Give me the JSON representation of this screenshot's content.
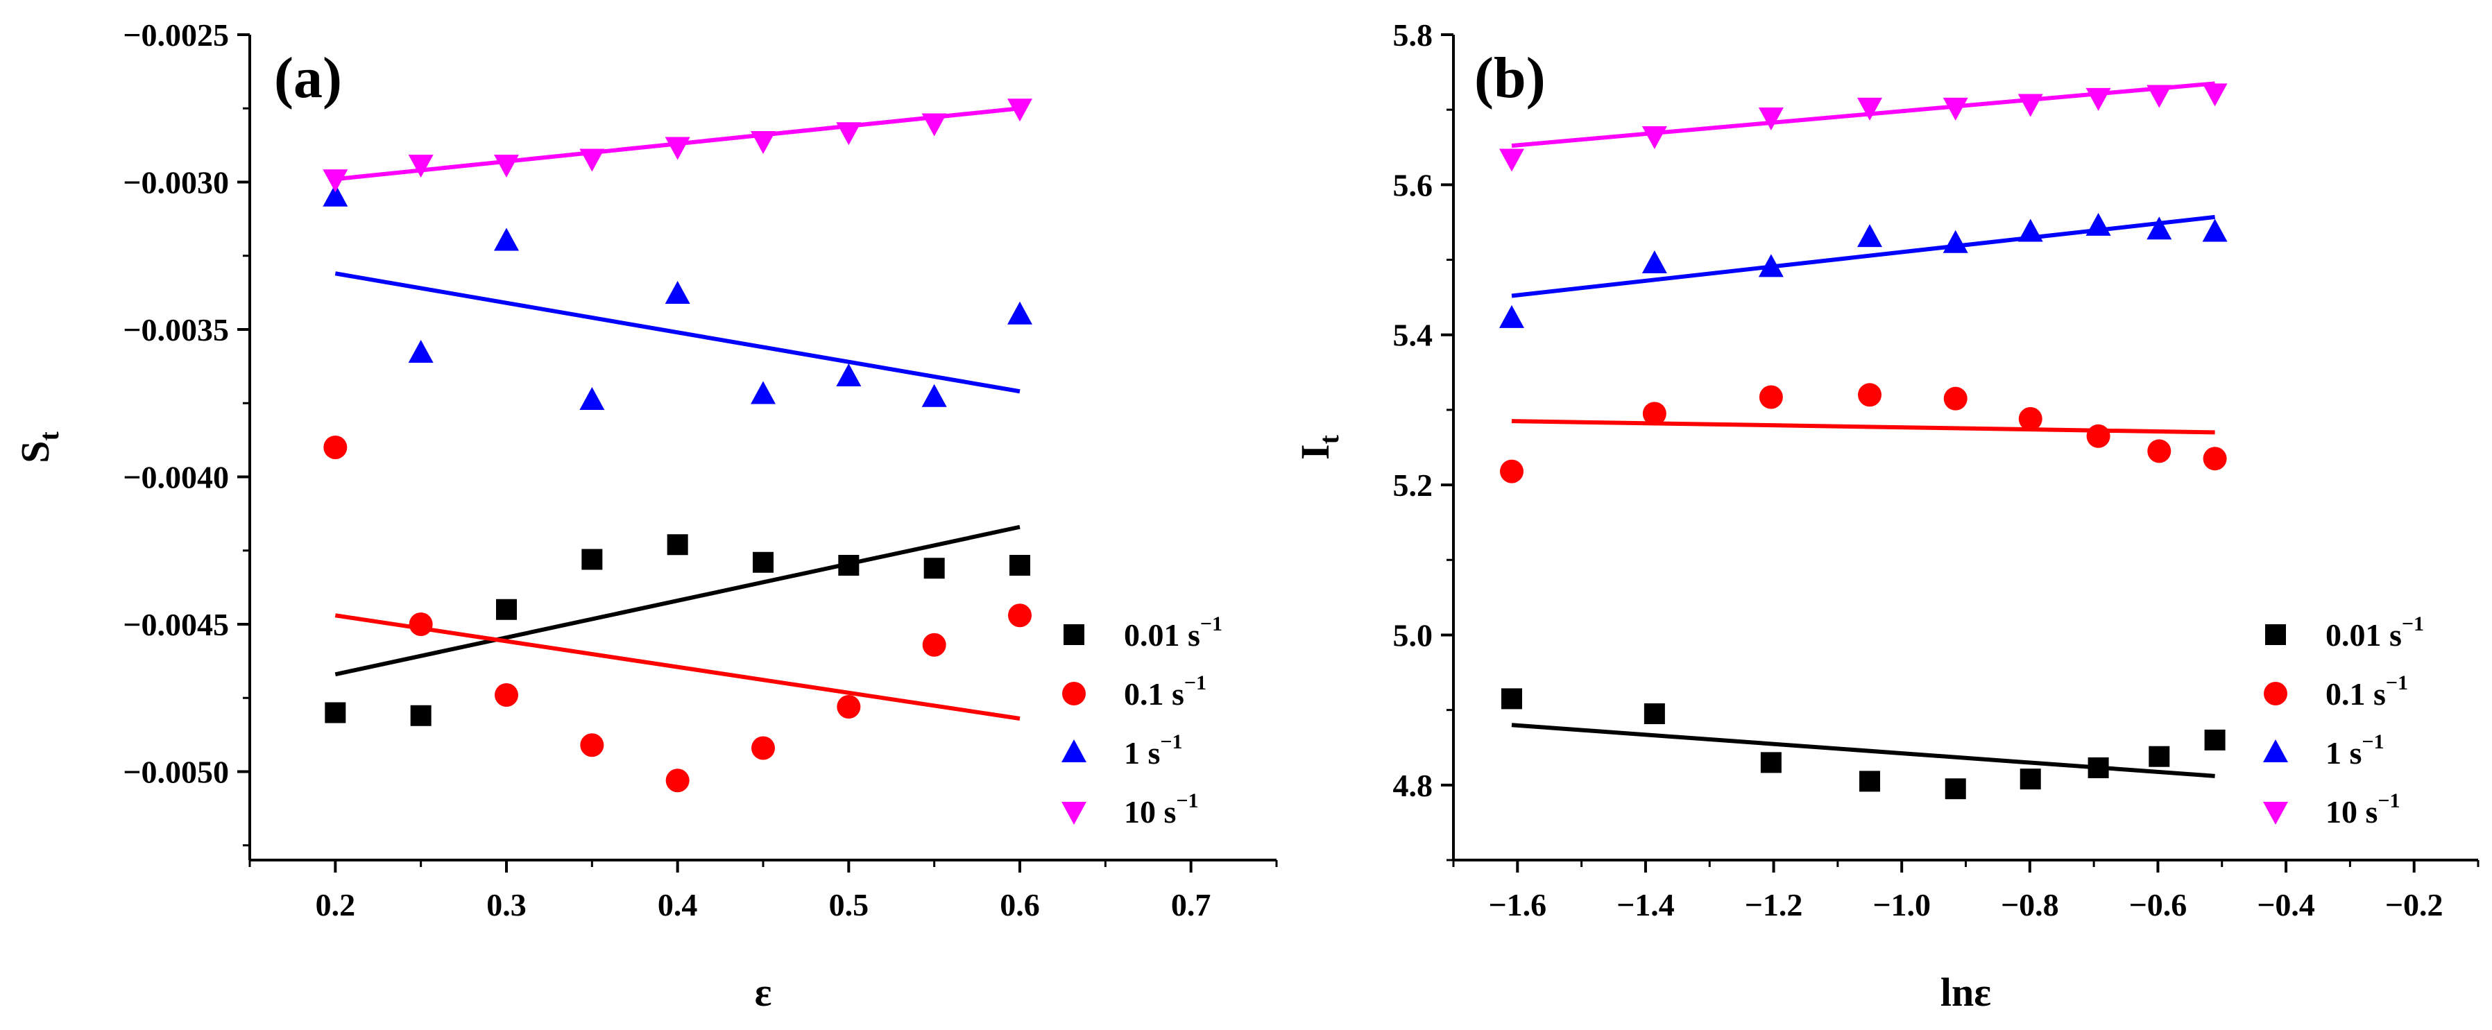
{
  "chart_data": [
    {
      "type": "scatter",
      "panel_label": "(a)",
      "xlabel": "ε",
      "ylabel_main": "S",
      "ylabel_sub": "t",
      "xlim": [
        0.15,
        0.75
      ],
      "ylim": [
        -0.0053,
        -0.0025
      ],
      "xticks": [
        0.2,
        0.3,
        0.4,
        0.5,
        0.6,
        0.7
      ],
      "xtick_labels": [
        "0.2",
        "0.3",
        "0.4",
        "0.5",
        "0.6",
        "0.7"
      ],
      "yticks": [
        -0.005,
        -0.0045,
        -0.004,
        -0.0035,
        -0.003,
        -0.0025
      ],
      "ytick_labels": [
        "−0.0050",
        "−0.0045",
        "−0.0040",
        "−0.0035",
        "−0.0030",
        "−0.0025"
      ],
      "legend_position": "bottom-right",
      "series": [
        {
          "name": "0.01 s",
          "unit_exp": "−1",
          "marker": "square",
          "color": "#000000",
          "x": [
            0.2,
            0.25,
            0.3,
            0.35,
            0.4,
            0.45,
            0.5,
            0.55,
            0.6
          ],
          "y": [
            -0.0048,
            -0.00481,
            -0.00445,
            -0.00428,
            -0.00423,
            -0.00429,
            -0.0043,
            -0.00431,
            -0.0043
          ],
          "fit": [
            [
              0.2,
              -0.00467
            ],
            [
              0.6,
              -0.00417
            ]
          ]
        },
        {
          "name": "0.1 s",
          "unit_exp": "−1",
          "marker": "circle",
          "color": "#ff0000",
          "x": [
            0.2,
            0.25,
            0.3,
            0.35,
            0.4,
            0.45,
            0.5,
            0.55,
            0.6
          ],
          "y": [
            -0.0039,
            -0.0045,
            -0.00474,
            -0.00491,
            -0.00503,
            -0.00492,
            -0.00478,
            -0.00457,
            -0.00447
          ],
          "fit": [
            [
              0.2,
              -0.00447
            ],
            [
              0.6,
              -0.00482
            ]
          ]
        },
        {
          "name": "1 s",
          "unit_exp": "−1",
          "marker": "triangle-up",
          "color": "#0000ff",
          "x": [
            0.2,
            0.25,
            0.3,
            0.35,
            0.4,
            0.45,
            0.5,
            0.55,
            0.6
          ],
          "y": [
            -0.00305,
            -0.00358,
            -0.0032,
            -0.00374,
            -0.00338,
            -0.00372,
            -0.00366,
            -0.00373,
            -0.00345
          ],
          "fit": [
            [
              0.2,
              -0.00331
            ],
            [
              0.6,
              -0.00371
            ]
          ]
        },
        {
          "name": "10 s",
          "unit_exp": "−1",
          "marker": "triangle-down",
          "color": "#ff00ff",
          "x": [
            0.2,
            0.25,
            0.3,
            0.35,
            0.4,
            0.45,
            0.5,
            0.55,
            0.6
          ],
          "y": [
            -0.00299,
            -0.00294,
            -0.00294,
            -0.00292,
            -0.00288,
            -0.00286,
            -0.00283,
            -0.0028,
            -0.00275
          ],
          "fit": [
            [
              0.2,
              -0.00299
            ],
            [
              0.6,
              -0.00275
            ]
          ]
        }
      ]
    },
    {
      "type": "scatter",
      "panel_label": "(b)",
      "xlabel": "lnε",
      "ylabel_main": "I",
      "ylabel_sub": "t",
      "xlim": [
        -1.7,
        -0.1
      ],
      "ylim": [
        4.7,
        5.8
      ],
      "xticks": [
        -1.6,
        -1.4,
        -1.2,
        -1.0,
        -0.8,
        -0.6,
        -0.4,
        -0.2
      ],
      "xtick_labels": [
        "−1.6",
        "−1.4",
        "−1.2",
        "−1.0",
        "−0.8",
        "−0.6",
        "−0.4",
        "−0.2"
      ],
      "yticks": [
        4.8,
        5.0,
        5.2,
        5.4,
        5.6,
        5.8
      ],
      "ytick_labels": [
        "4.8",
        "5.0",
        "5.2",
        "5.4",
        "5.6",
        "5.8"
      ],
      "legend_position": "bottom-right",
      "series": [
        {
          "name": "0.01 s",
          "unit_exp": "−1",
          "marker": "square",
          "color": "#000000",
          "x": [
            -1.609,
            -1.386,
            -1.204,
            -1.05,
            -0.916,
            -0.799,
            -0.693,
            -0.598,
            -0.511
          ],
          "y": [
            4.915,
            4.895,
            4.83,
            4.805,
            4.795,
            4.808,
            4.823,
            4.838,
            4.86
          ],
          "fit": [
            [
              -1.609,
              4.88
            ],
            [
              -0.511,
              4.812
            ]
          ]
        },
        {
          "name": "0.1 s",
          "unit_exp": "−1",
          "marker": "circle",
          "color": "#ff0000",
          "x": [
            -1.609,
            -1.386,
            -1.204,
            -1.05,
            -0.916,
            -0.799,
            -0.693,
            -0.598,
            -0.511
          ],
          "y": [
            5.218,
            5.295,
            5.317,
            5.32,
            5.315,
            5.288,
            5.265,
            5.245,
            5.235
          ],
          "fit": [
            [
              -1.609,
              5.285
            ],
            [
              -0.511,
              5.27
            ]
          ]
        },
        {
          "name": "1 s",
          "unit_exp": "−1",
          "marker": "triangle-up",
          "color": "#0000ff",
          "x": [
            -1.609,
            -1.386,
            -1.204,
            -1.05,
            -0.916,
            -0.799,
            -0.693,
            -0.598,
            -0.511
          ],
          "y": [
            5.422,
            5.495,
            5.49,
            5.53,
            5.522,
            5.537,
            5.545,
            5.54,
            5.537
          ],
          "fit": [
            [
              -1.609,
              5.452
            ],
            [
              -0.511,
              5.557
            ]
          ]
        },
        {
          "name": "10 s",
          "unit_exp": "−1",
          "marker": "triangle-down",
          "color": "#ff00ff",
          "x": [
            -1.609,
            -1.386,
            -1.204,
            -1.05,
            -0.916,
            -0.799,
            -0.693,
            -0.598,
            -0.511
          ],
          "y": [
            5.635,
            5.665,
            5.69,
            5.703,
            5.703,
            5.708,
            5.716,
            5.72,
            5.722
          ],
          "fit": [
            [
              -1.609,
              5.652
            ],
            [
              -0.511,
              5.735
            ]
          ]
        }
      ]
    }
  ]
}
